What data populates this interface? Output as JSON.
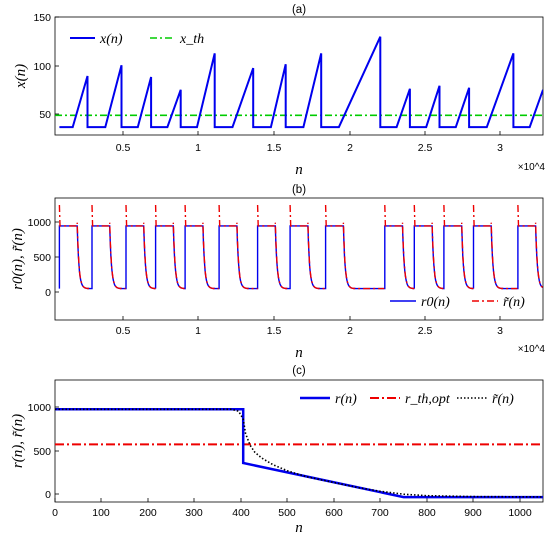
{
  "chart_data": [
    {
      "panel": "(a)",
      "type": "line",
      "xlabel": "n",
      "ylabel": "x(n)",
      "x_multiplier": "×10^4",
      "xlim": [
        0,
        3.3
      ],
      "ylim": [
        30,
        150
      ],
      "xticks": [
        0.5,
        1,
        1.5,
        2,
        2.5,
        3
      ],
      "xtick_labels": [
        "0.5",
        "1",
        "1.5",
        "2",
        "2.5",
        "3"
      ],
      "yticks": [
        50,
        100,
        150
      ],
      "ytick_labels": [
        "50",
        "100",
        "150"
      ],
      "legend_position": "top-left",
      "series": [
        {
          "name": "x(n)",
          "style": "solid",
          "color": "#0000ee",
          "x": [
            0.03,
            0.12,
            0.22,
            0.22,
            0.25,
            0.34,
            0.45,
            0.45,
            0.48,
            0.56,
            0.65,
            0.65,
            0.68,
            0.76,
            0.85,
            0.85,
            0.88,
            0.96,
            1.08,
            1.08,
            1.11,
            1.2,
            1.34,
            1.34,
            1.37,
            1.46,
            1.56,
            1.56,
            1.59,
            1.68,
            1.8,
            1.8,
            1.83,
            1.92,
            2.2,
            2.2,
            2.23,
            2.31,
            2.4,
            2.4,
            2.43,
            2.51,
            2.6,
            2.6,
            2.63,
            2.71,
            2.8,
            2.8,
            2.83,
            2.92,
            3.1,
            3.1,
            3.13,
            3.21,
            3.3
          ],
          "y": [
            38,
            38,
            90,
            38,
            38,
            38,
            101,
            38,
            38,
            38,
            89,
            38,
            38,
            38,
            76,
            38,
            38,
            38,
            113,
            38,
            38,
            38,
            98,
            38,
            38,
            38,
            102,
            38,
            38,
            38,
            113,
            38,
            38,
            38,
            130,
            38,
            38,
            38,
            77,
            38,
            38,
            38,
            80,
            38,
            38,
            38,
            78,
            38,
            38,
            38,
            113,
            38,
            38,
            38,
            76
          ]
        },
        {
          "name": "x_th",
          "style": "dash-dot",
          "color": "#00cc00",
          "x": [
            0,
            3.3
          ],
          "y": [
            50,
            50
          ]
        }
      ]
    },
    {
      "panel": "(b)",
      "type": "line",
      "xlabel": "n",
      "ylabel": "r0(n), r̃(n)",
      "x_multiplier": "×10^4",
      "xlim": [
        0,
        3.3
      ],
      "ylim": [
        -450,
        1300
      ],
      "xticks": [
        0.5,
        1,
        1.5,
        2,
        2.5,
        3
      ],
      "xtick_labels": [
        "0.5",
        "1",
        "1.5",
        "2",
        "2.5",
        "3"
      ],
      "yticks": [
        0,
        500,
        1000
      ],
      "ytick_labels": [
        "0",
        "500",
        "1000"
      ],
      "legend_position": "bottom-right",
      "pulse_starts": [
        0.03,
        0.25,
        0.48,
        0.68,
        0.88,
        1.11,
        1.37,
        1.59,
        1.83,
        2.23,
        2.43,
        2.63,
        2.83,
        3.13
      ],
      "pulse_high": 900,
      "pulse_low": 0,
      "series": [
        {
          "name": "r0(n)",
          "style": "solid",
          "color": "#0000ee"
        },
        {
          "name": "r̃(n)",
          "style": "dash-dot",
          "color": "#ee0000",
          "spike_peak": 1200
        }
      ]
    },
    {
      "panel": "(c)",
      "type": "line",
      "xlabel": "n",
      "ylabel": "r(n), r̃(n)",
      "xlim": [
        0,
        1050
      ],
      "ylim": [
        -50,
        1200
      ],
      "xticks": [
        0,
        100,
        200,
        300,
        400,
        500,
        600,
        700,
        800,
        900,
        1000
      ],
      "xtick_labels": [
        "0",
        "100",
        "200",
        "300",
        "400",
        "500",
        "600",
        "700",
        "800",
        "900",
        "1000"
      ],
      "yticks": [
        0,
        500,
        1000
      ],
      "ytick_labels": [
        "0",
        "500",
        "1000"
      ],
      "legend_position": "top-right",
      "series": [
        {
          "name": "r(n)",
          "style": "solid",
          "color": "#0000ee",
          "x": [
            0,
            405,
            405,
            750,
            1050
          ],
          "y": [
            900,
            900,
            350,
            0,
            0
          ]
        },
        {
          "name": "r_th,opt",
          "style": "dash-dot",
          "color": "#ee0000",
          "x": [
            0,
            1050
          ],
          "y": [
            540,
            540
          ]
        },
        {
          "name": "r̃(n)",
          "style": "dotted",
          "color": "#000000",
          "x": [
            0,
            380,
            395,
            405,
            410,
            420,
            430,
            445,
            470,
            500,
            540,
            600,
            650,
            700,
            750,
            800,
            900,
            1050
          ],
          "y": [
            900,
            900,
            880,
            800,
            650,
            530,
            460,
            400,
            330,
            270,
            210,
            150,
            100,
            60,
            30,
            15,
            5,
            2
          ]
        }
      ]
    }
  ]
}
